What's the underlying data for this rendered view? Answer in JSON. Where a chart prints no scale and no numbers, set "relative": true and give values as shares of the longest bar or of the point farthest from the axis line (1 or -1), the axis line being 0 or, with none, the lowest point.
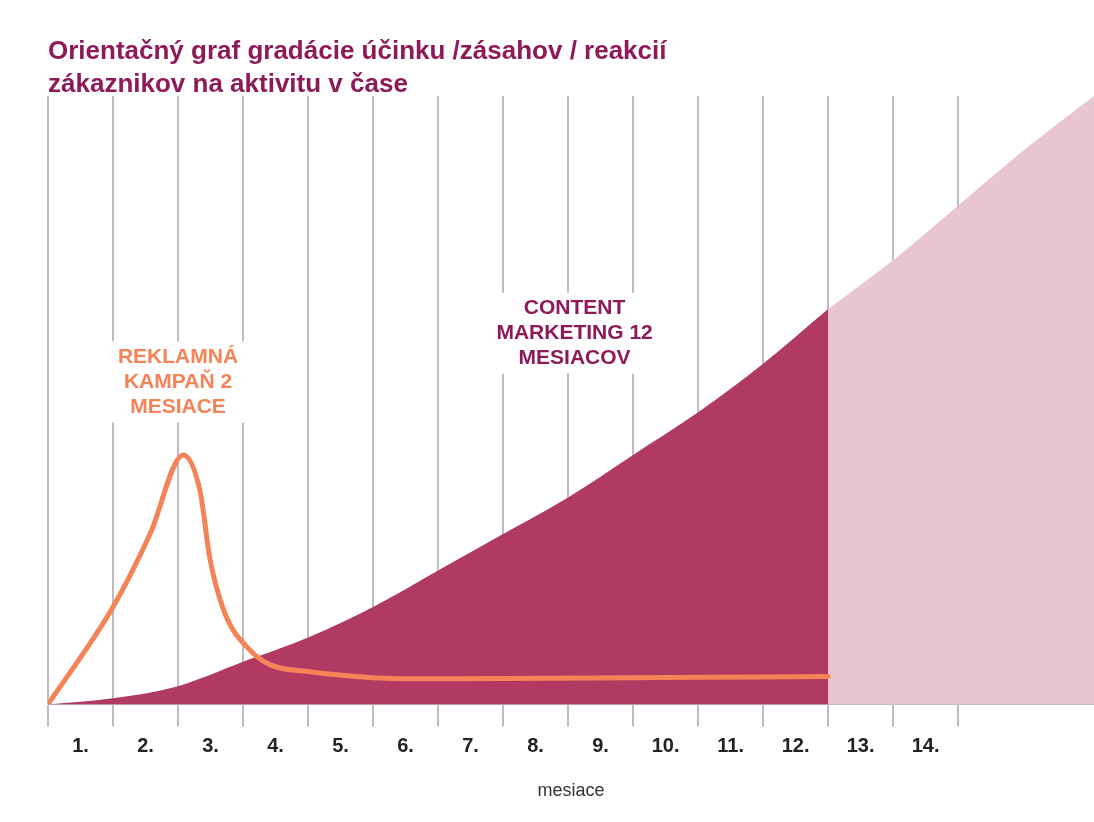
{
  "chart_data": {
    "type": "area",
    "title": "Orientačný graf gradácie účinku /zásahov / reakcií zákaznikov na aktivitu v čase",
    "xlabel": "mesiace",
    "relative": true,
    "legend": false,
    "grid": "x",
    "xlim": [
      0,
      16.09
    ],
    "xticks": [
      {
        "value": 0,
        "label": null
      },
      {
        "value": 0.5,
        "label": "1."
      },
      {
        "value": 1,
        "label": null
      },
      {
        "value": 1.5,
        "label": "2."
      },
      {
        "value": 2,
        "label": null
      },
      {
        "value": 2.5,
        "label": "3."
      },
      {
        "value": 3,
        "label": null
      },
      {
        "value": 3.5,
        "label": "4."
      },
      {
        "value": 4,
        "label": null
      },
      {
        "value": 4.5,
        "label": "5."
      },
      {
        "value": 5,
        "label": null
      },
      {
        "value": 5.5,
        "label": "6."
      },
      {
        "value": 6,
        "label": null
      },
      {
        "value": 6.5,
        "label": "7."
      },
      {
        "value": 7,
        "label": null
      },
      {
        "value": 7.5,
        "label": "8."
      },
      {
        "value": 8,
        "label": null
      },
      {
        "value": 8.5,
        "label": "9."
      },
      {
        "value": 9,
        "label": null
      },
      {
        "value": 9.5,
        "label": "10."
      },
      {
        "value": 10,
        "label": null
      },
      {
        "value": 10.5,
        "label": "11."
      },
      {
        "value": 11,
        "label": null
      },
      {
        "value": 11.5,
        "label": "12."
      },
      {
        "value": 12,
        "label": null
      },
      {
        "value": 12.5,
        "label": "13."
      },
      {
        "value": 13,
        "label": null
      },
      {
        "value": 13.5,
        "label": "14."
      },
      {
        "value": 14,
        "label": null
      }
    ],
    "series": [
      {
        "name": null,
        "color": "#e9c6cf",
        "x": [
          12,
          13,
          14,
          15,
          16.09
        ],
        "values": [
          0.65,
          0.73,
          0.82,
          0.91,
          1.0
        ]
      },
      {
        "name": "CONTENT MARKETING 12 MESIACOV",
        "color": "#b03a62",
        "x": [
          0,
          1,
          2,
          3,
          4,
          5,
          6,
          7,
          8,
          9,
          10,
          11,
          12
        ],
        "values": [
          0,
          0.01,
          0.03,
          0.07,
          0.11,
          0.16,
          0.22,
          0.28,
          0.34,
          0.41,
          0.48,
          0.56,
          0.65
        ]
      },
      {
        "name": "REKLAMNÁ KAMPAŇ 2 MESIACE",
        "type": "line",
        "color": "#f58358",
        "x": [
          0,
          1,
          1.57,
          2.08,
          2.34,
          2.49,
          2.72,
          3.1,
          3.42,
          4,
          5,
          6,
          12
        ],
        "values": [
          0,
          0.16,
          0.28,
          0.41,
          0.35,
          0.24,
          0.15,
          0.09,
          0.065,
          0.054,
          0.044,
          0.042,
          0.046
        ]
      }
    ]
  }
}
